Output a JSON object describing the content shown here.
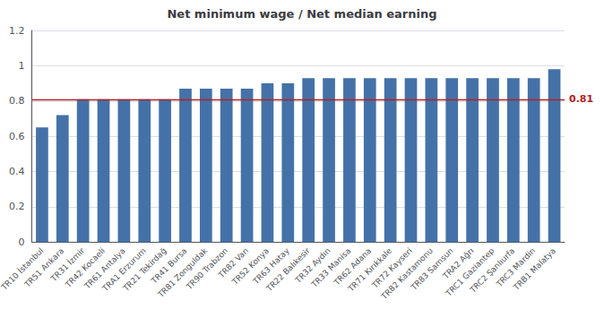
{
  "chart_data": {
    "type": "bar",
    "title": "Net minimum wage / Net median earning",
    "categories": [
      "TR10 İstanbul",
      "TR51 Ankara",
      "TR31 İzmir",
      "TR42 Kocaeli",
      "TR61 Antalya",
      "TRA1 Erzurum",
      "TR21 Tekirdağ",
      "TR41 Bursa",
      "TR81 Zonguldak",
      "TR90 Trabzon",
      "TR82 Van",
      "TR52 Konya",
      "TR63 Hatay",
      "TR22 Balıkesir",
      "TR32 Aydın",
      "TR33 Manisa",
      "TR62 Adana",
      "TR71 Kırıkkale",
      "TR72 Kayseri",
      "TR82 Kastamonu",
      "TR83 Samsun",
      "TRA2 Ağrı",
      "TRC1 Gaziantep",
      "TRC2 Şanlıurfa",
      "TRC3 Mardin",
      "TRB1 Malatya"
    ],
    "values": [
      0.65,
      0.72,
      0.81,
      0.81,
      0.81,
      0.81,
      0.81,
      0.87,
      0.87,
      0.87,
      0.87,
      0.9,
      0.9,
      0.93,
      0.93,
      0.93,
      0.93,
      0.93,
      0.93,
      0.93,
      0.93,
      0.93,
      0.93,
      0.93,
      0.93,
      0.98
    ],
    "color": "#4472a8",
    "ylim": [
      0,
      1.2
    ],
    "yticks": [
      0,
      0.2,
      0.4,
      0.6,
      0.8,
      1,
      1.2
    ],
    "grid": true,
    "annotations": [
      {
        "type": "hline",
        "y": 0.81,
        "text": "0.81",
        "color": "#b22222"
      }
    ]
  }
}
